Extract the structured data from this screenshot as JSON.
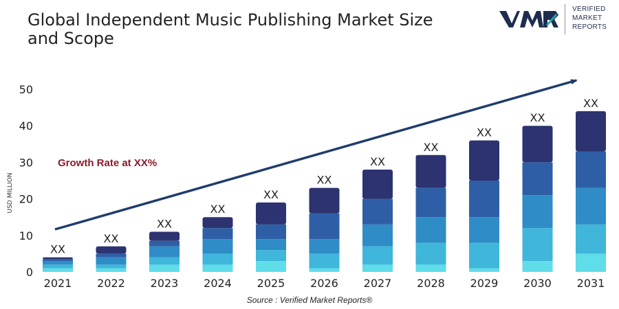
{
  "title": "Global Independent Music Publishing Market Size and Scope",
  "logo": {
    "mark": "VMR",
    "line1": "VERIFIED",
    "line2": "MARKET",
    "line3": "REPORTS",
    "mark_color": "#1e2d4f",
    "accent_color": "#1fa7b5"
  },
  "source": "Source :  Verified Market Reports®",
  "chart_data": {
    "type": "bar",
    "stacked": true,
    "categories": [
      "2021",
      "2022",
      "2023",
      "2024",
      "2025",
      "2026",
      "2027",
      "2028",
      "2029",
      "2030",
      "2031"
    ],
    "series": [
      {
        "values": [
          1,
          1,
          2,
          2,
          3,
          1,
          2,
          2,
          1,
          3,
          5
        ],
        "color": "#5fdde9"
      },
      {
        "values": [
          1,
          1,
          2,
          3,
          3,
          4,
          5,
          6,
          7,
          9,
          8
        ],
        "color": "#3fb6da"
      },
      {
        "values": [
          1,
          2,
          3,
          4,
          3,
          4,
          6,
          7,
          7,
          9,
          10
        ],
        "color": "#2f8cc6"
      },
      {
        "values": [
          0.5,
          1,
          1.5,
          3,
          4,
          7,
          7,
          8,
          10,
          9,
          10
        ],
        "color": "#2e5fa6"
      },
      {
        "values": [
          0.5,
          2,
          2.5,
          3,
          6,
          7,
          8,
          9,
          11,
          10,
          11
        ],
        "color": "#2c3370"
      }
    ],
    "totals": [
      4,
      7,
      11,
      15,
      19,
      23,
      28,
      32,
      36,
      40,
      44
    ],
    "data_labels": [
      "XX",
      "XX",
      "XX",
      "XX",
      "XX",
      "XX",
      "XX",
      "XX",
      "XX",
      "XX",
      "XX"
    ],
    "ylabel": "USD MILLION",
    "ylim": [
      0,
      50
    ],
    "yticks": [
      0,
      10,
      20,
      30,
      40,
      50
    ],
    "grid": false,
    "annotation": "Growth Rate at XX%",
    "annotation_color": "#8b1a2b",
    "trend_arrow_color": "#1e3d6b"
  }
}
